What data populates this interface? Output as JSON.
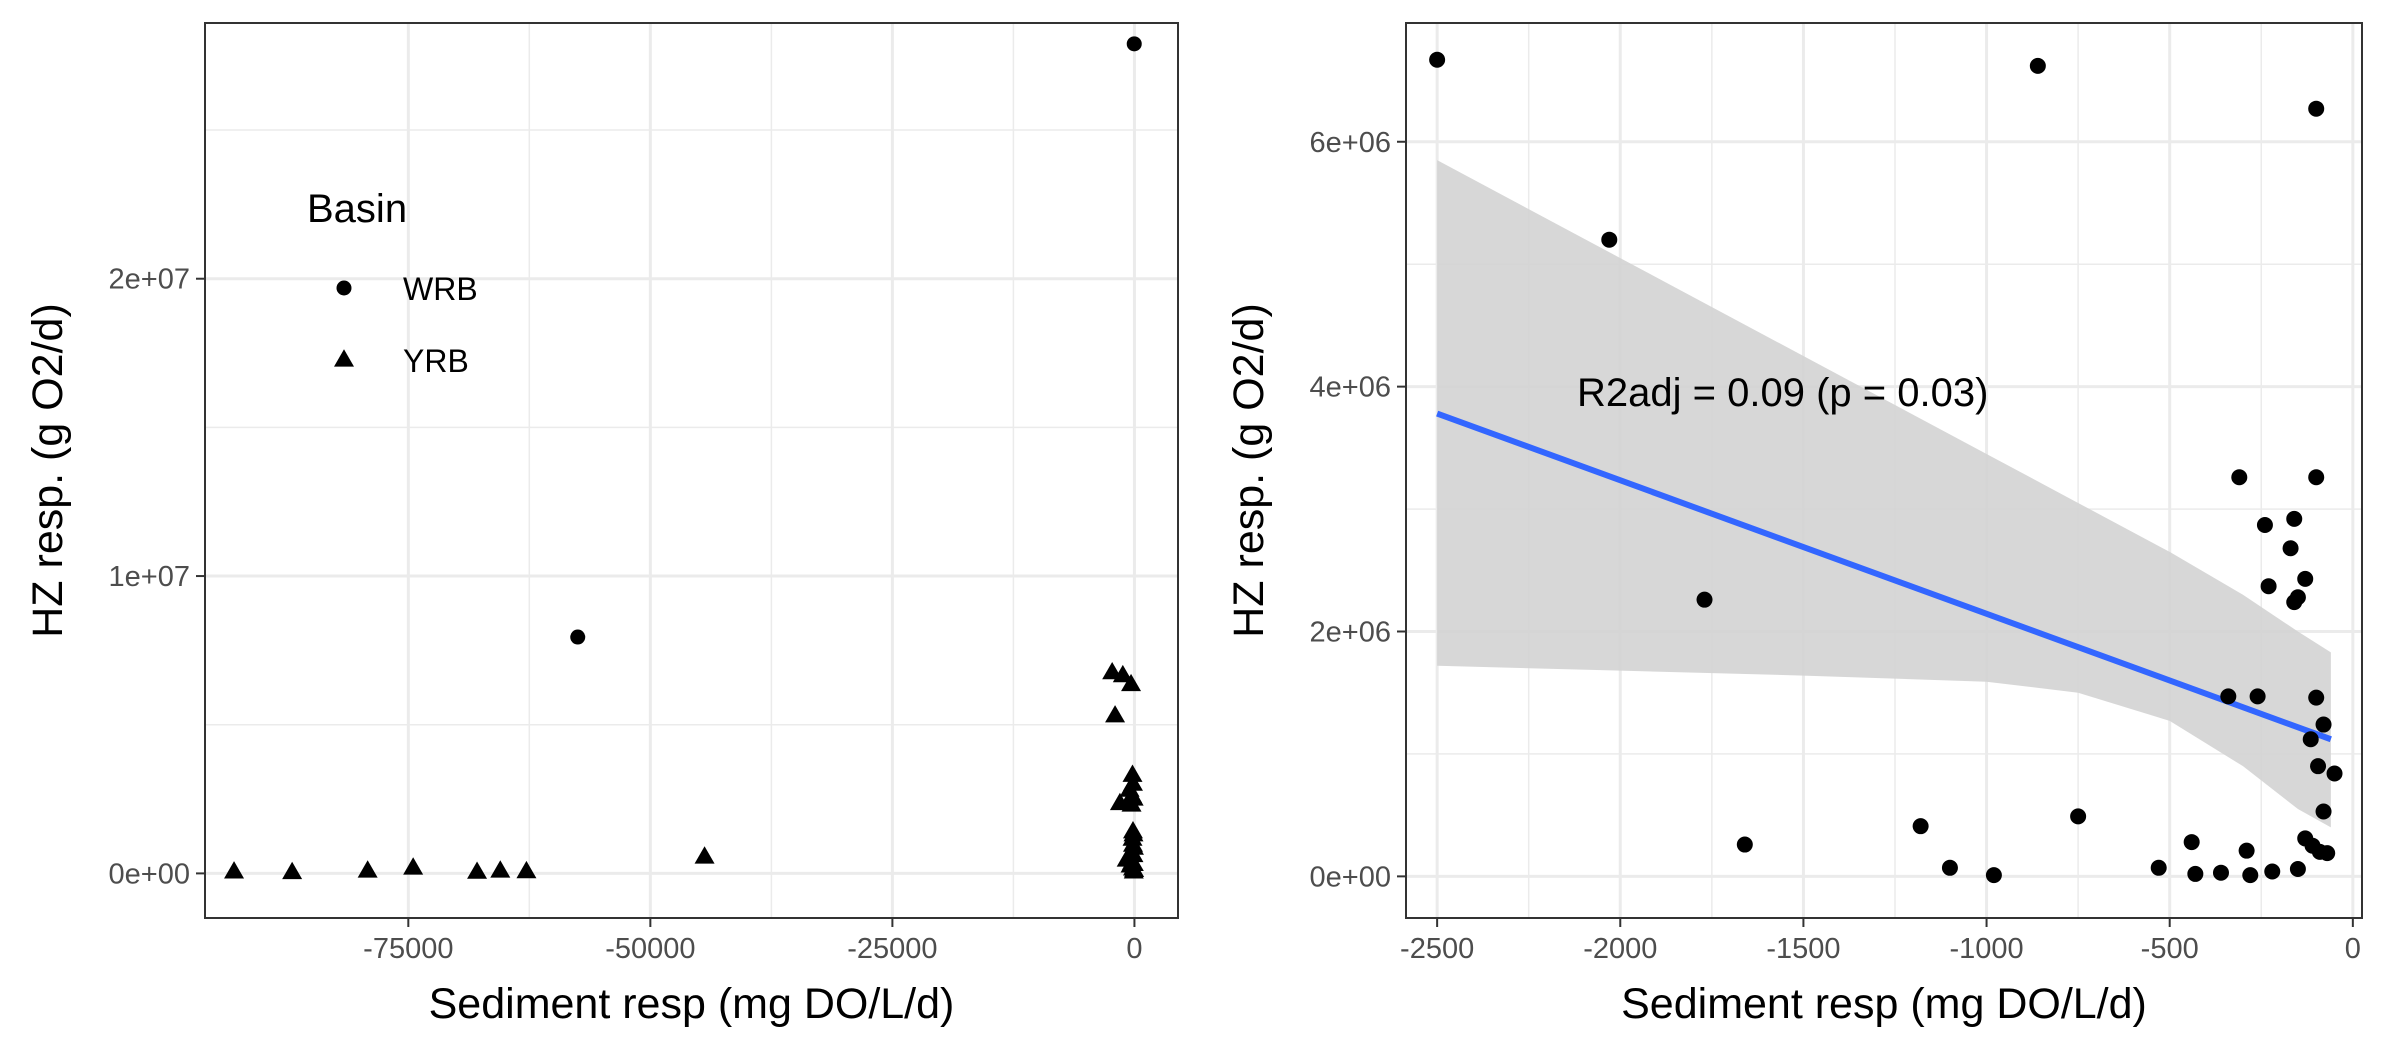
{
  "chart_data": [
    {
      "type": "scatter",
      "xlabel": "Sediment resp (mg DO/L/d)",
      "ylabel": "HZ resp. (g O2/d)",
      "xlim": [
        -96000,
        4500
      ],
      "ylim": [
        -1500000,
        28600000
      ],
      "x_ticks": [
        -75000,
        -50000,
        -25000,
        0
      ],
      "x_tick_labels": [
        "-75000",
        "-50000",
        "-25000",
        "0"
      ],
      "y_ticks": [
        0,
        10000000,
        20000000
      ],
      "y_tick_labels": [
        "0e+00",
        "1e+07",
        "2e+07"
      ],
      "grid": true,
      "legend": {
        "title": "Basin",
        "placement": "top-left",
        "entries": [
          {
            "label": "WRB",
            "shape": "circle"
          },
          {
            "label": "YRB",
            "shape": "triangle"
          }
        ]
      },
      "series": [
        {
          "name": "WRB",
          "shape": "circle",
          "points": [
            [
              -20,
              27900000
            ],
            [
              -57500,
              7950000
            ]
          ]
        },
        {
          "name": "YRB",
          "shape": "triangle",
          "points": [
            [
              -93000,
              50000
            ],
            [
              -87000,
              30000
            ],
            [
              -79200,
              80000
            ],
            [
              -74500,
              180000
            ],
            [
              -67900,
              40000
            ],
            [
              -65500,
              80000
            ],
            [
              -62800,
              60000
            ],
            [
              -44400,
              550000
            ],
            [
              -2300,
              6750000
            ],
            [
              -1200,
              6650000
            ],
            [
              -350,
              6350000
            ],
            [
              -2000,
              5300000
            ],
            [
              -200,
              3300000
            ],
            [
              -150,
              3000000
            ],
            [
              -500,
              2800000
            ],
            [
              -250,
              2600000
            ],
            [
              -80,
              2500000
            ],
            [
              -1500,
              2350000
            ],
            [
              -300,
              2300000
            ],
            [
              -150,
              1400000
            ],
            [
              -100,
              1300000
            ],
            [
              -200,
              1150000
            ],
            [
              -150,
              950000
            ],
            [
              -50,
              850000
            ],
            [
              -300,
              700000
            ],
            [
              -100,
              600000
            ],
            [
              -800,
              450000
            ],
            [
              -250,
              350000
            ],
            [
              -60,
              300000
            ],
            [
              -400,
              250000
            ],
            [
              -150,
              150000
            ],
            [
              -30,
              100000
            ],
            [
              -70,
              50000
            ]
          ]
        }
      ]
    },
    {
      "type": "scatter",
      "xlabel": "Sediment resp (mg DO/L/d)",
      "ylabel": "HZ resp. (g O2/d)",
      "xlim": [
        -2585,
        25
      ],
      "ylim": [
        -340000,
        6970000
      ],
      "x_ticks": [
        -2500,
        -2000,
        -1500,
        -1000,
        -500,
        0
      ],
      "x_tick_labels": [
        "-2500",
        "-2000",
        "-1500",
        "-1000",
        "-500",
        "0"
      ],
      "y_ticks": [
        0,
        2000000,
        4000000,
        6000000
      ],
      "y_tick_labels": [
        "0e+00",
        "2e+06",
        "4e+06",
        "6e+06"
      ],
      "grid": true,
      "annotation": "R2adj = 0.09 (p = 0.03)",
      "regression_line": {
        "color": "#3366ff",
        "x": [
          -2500,
          -60
        ],
        "y": [
          3780000,
          1120000
        ]
      },
      "confidence_band": {
        "color": "#d3d3d3",
        "x": [
          -2500,
          -2000,
          -1500,
          -1000,
          -750,
          -500,
          -300,
          -150,
          -60
        ],
        "upper": [
          5850000,
          5050000,
          4250000,
          3450000,
          3050000,
          2650000,
          2300000,
          2000000,
          1830000
        ],
        "lower": [
          1720000,
          1680000,
          1640000,
          1590000,
          1500000,
          1270000,
          900000,
          550000,
          400000
        ]
      },
      "points": [
        [
          -2500,
          6670000
        ],
        [
          -2030,
          5200000
        ],
        [
          -860,
          6620000
        ],
        [
          -100,
          6270000
        ],
        [
          -1770,
          2260000
        ],
        [
          -310,
          3260000
        ],
        [
          -100,
          3260000
        ],
        [
          -160,
          2920000
        ],
        [
          -240,
          2870000
        ],
        [
          -170,
          2680000
        ],
        [
          -230,
          2370000
        ],
        [
          -130,
          2430000
        ],
        [
          -150,
          2280000
        ],
        [
          -160,
          2240000
        ],
        [
          -340,
          1470000
        ],
        [
          -260,
          1470000
        ],
        [
          -100,
          1460000
        ],
        [
          -80,
          1240000
        ],
        [
          -115,
          1120000
        ],
        [
          -95,
          900000
        ],
        [
          -50,
          840000
        ],
        [
          -80,
          530000
        ],
        [
          -750,
          490000
        ],
        [
          -1180,
          410000
        ],
        [
          -1660,
          260000
        ],
        [
          -440,
          280000
        ],
        [
          -130,
          310000
        ],
        [
          -110,
          250000
        ],
        [
          -290,
          210000
        ],
        [
          -90,
          200000
        ],
        [
          -70,
          190000
        ],
        [
          -1100,
          70000
        ],
        [
          -530,
          70000
        ],
        [
          -150,
          60000
        ],
        [
          -220,
          40000
        ],
        [
          -360,
          30000
        ],
        [
          -430,
          20000
        ],
        [
          -280,
          10000
        ],
        [
          -980,
          10000
        ]
      ]
    }
  ]
}
